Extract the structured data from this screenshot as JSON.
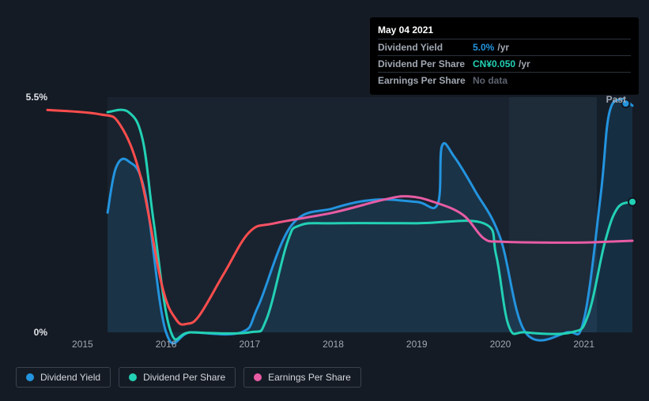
{
  "chart": {
    "type": "line",
    "background_color": "#151b24",
    "grid_color": "#2b323d",
    "axis_label_color": "#a1a8b3",
    "axis_label_fontsize": 12,
    "y_axis_labels": [
      {
        "text": "5.5%",
        "value": 5.5
      },
      {
        "text": "0%",
        "value": 0
      }
    ],
    "ylim": [
      0,
      5.5
    ],
    "x_axis_labels": [
      "2015",
      "2016",
      "2017",
      "2018",
      "2019",
      "2020",
      "2021"
    ],
    "xlim": [
      2014.58,
      2021.58
    ],
    "bands": [
      {
        "from": 2015.3,
        "to": 2020.1,
        "color": "#1a2531",
        "opacity": 0.85
      },
      {
        "from": 2020.1,
        "to": 2021.15,
        "color": "#1f2c3b",
        "opacity": 0.95
      },
      {
        "from": 2021.15,
        "to": 2021.58,
        "color": "#14202c",
        "opacity": 0.7
      }
    ],
    "past_label": "Past",
    "line_width": 3,
    "series": [
      {
        "key": "dividend_yield",
        "name": "Dividend Yield",
        "color": "#2394df",
        "fill_under": true,
        "fill_color": "rgba(35,148,223,0.14)",
        "marker": {
          "x": 2021.5,
          "y": 5.35
        },
        "points": [
          [
            2015.3,
            2.8
          ],
          [
            2015.4,
            3.85
          ],
          [
            2015.55,
            4.0
          ],
          [
            2015.75,
            3.25
          ],
          [
            2016.0,
            0.0
          ],
          [
            2016.3,
            0.0
          ],
          [
            2016.9,
            0.0
          ],
          [
            2017.1,
            0.6
          ],
          [
            2017.5,
            2.5
          ],
          [
            2018.0,
            2.9
          ],
          [
            2018.5,
            3.1
          ],
          [
            2019.0,
            3.05
          ],
          [
            2019.25,
            3.0
          ],
          [
            2019.3,
            4.35
          ],
          [
            2019.45,
            4.1
          ],
          [
            2019.7,
            3.3
          ],
          [
            2020.0,
            2.2
          ],
          [
            2020.3,
            0.0
          ],
          [
            2020.8,
            0.0
          ],
          [
            2021.0,
            0.3
          ],
          [
            2021.2,
            3.2
          ],
          [
            2021.3,
            5.1
          ],
          [
            2021.45,
            5.45
          ],
          [
            2021.58,
            5.3
          ]
        ]
      },
      {
        "key": "dividend_per_share",
        "name": "Dividend Per Share",
        "color": "#23d1b5",
        "fill_under": false,
        "marker": {
          "x": 2021.58,
          "y": 3.05
        },
        "points": [
          [
            2015.3,
            5.15
          ],
          [
            2015.55,
            5.15
          ],
          [
            2015.72,
            4.5
          ],
          [
            2015.85,
            2.6
          ],
          [
            2016.05,
            0.05
          ],
          [
            2016.3,
            0.0
          ],
          [
            2017.0,
            0.0
          ],
          [
            2017.2,
            0.3
          ],
          [
            2017.45,
            2.1
          ],
          [
            2017.6,
            2.5
          ],
          [
            2018.0,
            2.55
          ],
          [
            2019.0,
            2.55
          ],
          [
            2019.8,
            2.55
          ],
          [
            2019.95,
            1.8
          ],
          [
            2020.1,
            0.15
          ],
          [
            2020.3,
            0.0
          ],
          [
            2020.85,
            0.0
          ],
          [
            2021.05,
            0.4
          ],
          [
            2021.25,
            2.1
          ],
          [
            2021.4,
            2.9
          ],
          [
            2021.58,
            3.05
          ]
        ]
      },
      {
        "key": "earnings_per_share",
        "name": "Earnings Per Share",
        "color": "#e85ca4",
        "fill_under": false,
        "segments": [
          {
            "gradient_from": "#ff4d4d",
            "gradient_to": "#e85ca4",
            "gradient_split": 0.35,
            "points": [
              [
                2014.58,
                5.2
              ],
              [
                2015.2,
                5.1
              ],
              [
                2015.45,
                4.85
              ],
              [
                2015.7,
                3.6
              ],
              [
                2015.95,
                1.1
              ],
              [
                2016.12,
                0.3
              ],
              [
                2016.25,
                0.2
              ],
              [
                2016.4,
                0.4
              ],
              [
                2016.7,
                1.4
              ],
              [
                2017.0,
                2.35
              ],
              [
                2017.3,
                2.55
              ],
              [
                2018.0,
                2.8
              ],
              [
                2018.6,
                3.1
              ],
              [
                2018.9,
                3.18
              ],
              [
                2019.2,
                3.05
              ],
              [
                2019.55,
                2.75
              ],
              [
                2019.8,
                2.2
              ],
              [
                2020.0,
                2.12
              ],
              [
                2020.5,
                2.1
              ],
              [
                2021.0,
                2.1
              ],
              [
                2021.3,
                2.12
              ],
              [
                2021.58,
                2.14
              ]
            ]
          }
        ]
      }
    ]
  },
  "tooltip": {
    "date": "May 04 2021",
    "rows": [
      {
        "label": "Dividend Yield",
        "value": "5.0%",
        "unit": "/yr",
        "color": "#2394df"
      },
      {
        "label": "Dividend Per Share",
        "value": "CN¥0.050",
        "unit": "/yr",
        "color": "#23d1b5"
      },
      {
        "label": "Earnings Per Share",
        "nodata": "No data"
      }
    ]
  },
  "legend": {
    "items": [
      {
        "label": "Dividend Yield",
        "color": "#2394df"
      },
      {
        "label": "Dividend Per Share",
        "color": "#23d1b5"
      },
      {
        "label": "Earnings Per Share",
        "color": "#e85ca4"
      }
    ]
  }
}
